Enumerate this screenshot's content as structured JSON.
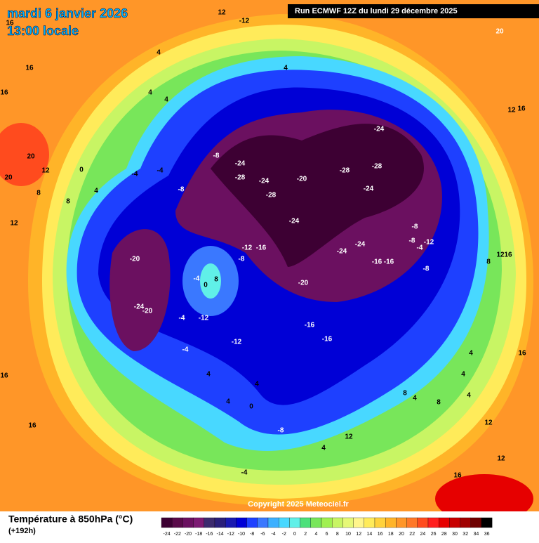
{
  "header": {
    "date": "mardi 6 janvier 2026",
    "time": "13:00 locale",
    "run": "Run ECMWF 12Z du lundi 29 décembre 2025"
  },
  "map": {
    "labels": [
      "12",
      "-12",
      "20",
      "16",
      "16",
      "16",
      "4",
      "4",
      "4",
      "4",
      "16",
      "12",
      "20",
      "20",
      "12",
      "0",
      "-4",
      "-4",
      "8",
      "8",
      "4",
      "12",
      "-8",
      "-8",
      "-24",
      "-28",
      "-24",
      "-28",
      "-20",
      "-24",
      "-28",
      "-28",
      "-24",
      "-24",
      "-12",
      "-16",
      "-8",
      "-24",
      "-24",
      "-16",
      "-16",
      "-8",
      "-8",
      "-4",
      "-12",
      "-8",
      "12",
      "16",
      "8",
      "-20",
      "-24",
      "-20",
      "-4",
      "0",
      "8",
      "-4",
      "-12",
      "-20",
      "-16",
      "-16",
      "-12",
      "-4",
      "4",
      "4",
      "4",
      "0",
      "-8",
      "4",
      "12",
      "16",
      "16",
      "8",
      "4",
      "4",
      "8",
      "12",
      "16",
      "12",
      "16",
      "-4",
      "4",
      "4"
    ],
    "copyright": "Copyright 2025 Meteociel.fr"
  },
  "footer": {
    "title": "Température à 850hPa (°C)",
    "lead": "(+192h)"
  },
  "colorbar": {
    "ticks": [
      -24,
      -22,
      -20,
      -18,
      -16,
      -14,
      -12,
      -10,
      -8,
      -6,
      -4,
      -2,
      0,
      2,
      4,
      6,
      8,
      10,
      12,
      14,
      16,
      18,
      20,
      22,
      24,
      26,
      28,
      30,
      32,
      34,
      36
    ],
    "colors": [
      "#3d0033",
      "#5a0a4a",
      "#6b1060",
      "#7d1a73",
      "#3c2a6e",
      "#2a1f7a",
      "#1a1ab0",
      "#0000d6",
      "#1e40ff",
      "#3a78ff",
      "#3cb0ff",
      "#48d8ff",
      "#60f0e8",
      "#4be07a",
      "#78e65a",
      "#a0f050",
      "#c8f564",
      "#e6f878",
      "#fff58c",
      "#ffeb5a",
      "#ffd23c",
      "#ffb428",
      "#ff9628",
      "#ff7828",
      "#ff4b1e",
      "#ff1e1e",
      "#e60000",
      "#c80000",
      "#a00000",
      "#6e0000",
      "#000000"
    ]
  }
}
